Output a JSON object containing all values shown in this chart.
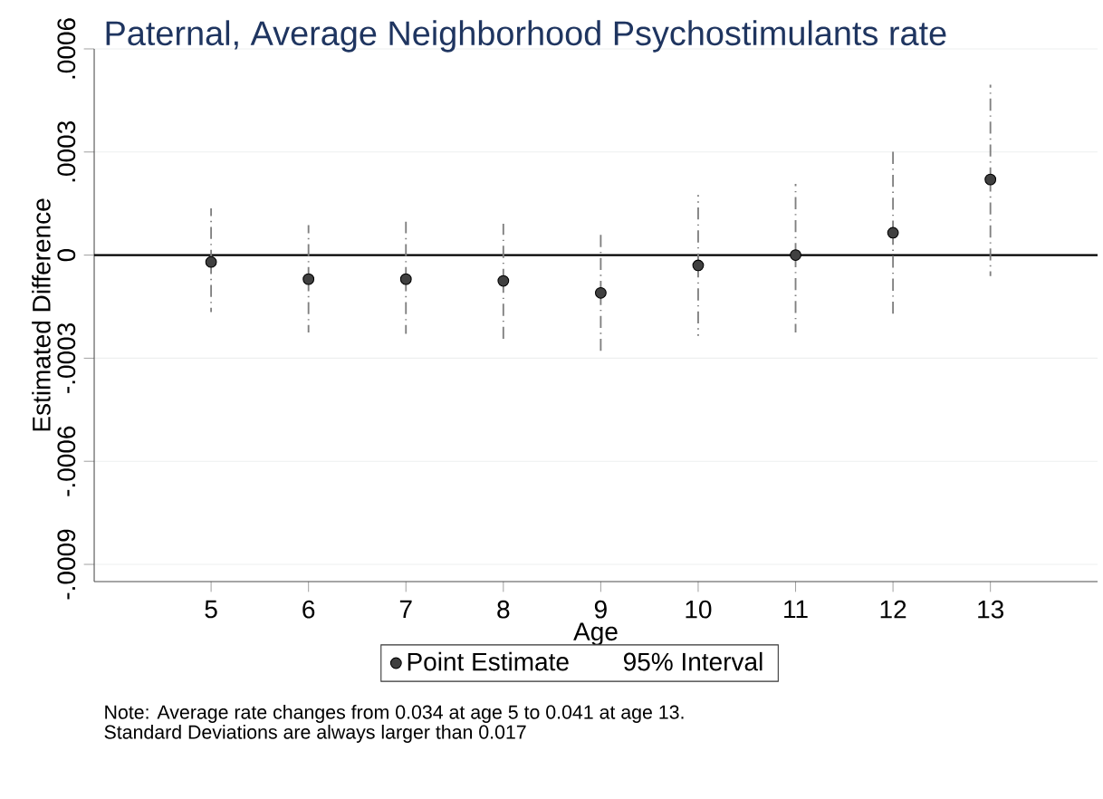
{
  "chart_data": {
    "type": "scatter",
    "title": "Paternal, Average Neighborhood Psychostimulants rate",
    "xlabel": "Age",
    "ylabel": "Estimated Difference",
    "x": [
      5,
      6,
      7,
      8,
      9,
      10,
      11,
      12,
      13
    ],
    "series": [
      {
        "name": "Point Estimate",
        "color": "#404040",
        "values": [
          -2e-05,
          -7e-05,
          -7e-05,
          -7.5e-05,
          -0.00011,
          -3e-05,
          0.0,
          6.5e-05,
          0.00022
        ],
        "errors": [
          [
            -0.000166,
            0.000136
          ],
          [
            -0.000225,
            8.7e-05
          ],
          [
            -0.000229,
            9.7e-05
          ],
          [
            -0.000247,
            9.1e-05
          ],
          [
            -0.000292,
            7e-05
          ],
          [
            -0.000235,
            0.000175
          ],
          [
            -0.000225,
            0.000207
          ],
          [
            -0.000182,
            0.000312
          ],
          [
            -6.1e-05,
            0.000496
          ]
        ]
      }
    ],
    "xlim": [
      3.8,
      14.1
    ],
    "ylim": [
      -0.00095,
      0.0006
    ],
    "xticks": [
      5,
      6,
      7,
      8,
      9,
      10,
      11,
      12,
      13
    ],
    "yticks": [
      {
        "value": -0.0009,
        "label": "-.0009"
      },
      {
        "value": -0.0006,
        "label": "-.0006"
      },
      {
        "value": -0.0003,
        "label": "-.0003"
      },
      0,
      {
        "value": 0.0003,
        "label": ".0003"
      },
      {
        "value": 0.0006,
        "label": ".0006"
      }
    ],
    "ref_lines": [
      {
        "axis": "y",
        "value": 0,
        "color": "#000000"
      }
    ],
    "grid": "y",
    "legend": "bottom",
    "marker": "circle",
    "annotations": [
      "95% Interval",
      "Note: Average rate changes from 0.034 at age 5 to 0.041 at age 13.",
      "Standard Deviations are always larger than 0.017"
    ]
  }
}
